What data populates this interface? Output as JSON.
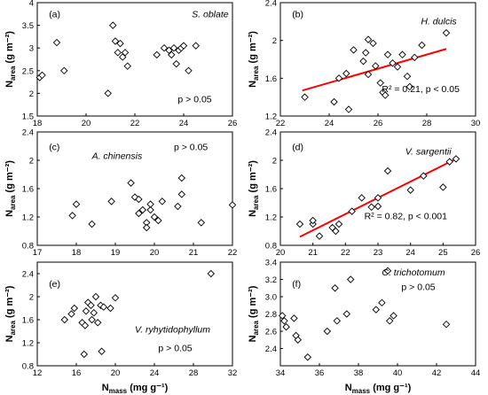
{
  "marker_color": "#000000",
  "fit_color": "#ff0000",
  "chart_data": [
    {
      "type": "scatter",
      "panel": "(a)",
      "species": "S. oblate",
      "annotation": "p > 0.05",
      "ylabel": "N",
      "ylabel_sub": "area",
      "ylabel_unit": "(g m⁻²)",
      "xlabel": "",
      "xlim": [
        18,
        26
      ],
      "ylim": [
        1.5,
        4
      ],
      "xticks": [
        18,
        20,
        22,
        24,
        26
      ],
      "yticks": [
        1.5,
        2,
        2.5,
        3,
        3.5,
        4
      ],
      "ytick_labels": [
        "1.5",
        "2",
        "2.5",
        "3",
        "3.5",
        "4"
      ],
      "points": [
        [
          18.1,
          2.35
        ],
        [
          18.2,
          2.4
        ],
        [
          18.8,
          3.12
        ],
        [
          19.1,
          2.5
        ],
        [
          20.9,
          2.0
        ],
        [
          21.1,
          3.5
        ],
        [
          21.2,
          3.15
        ],
        [
          21.3,
          2.9
        ],
        [
          21.4,
          3.1
        ],
        [
          21.5,
          2.8
        ],
        [
          21.6,
          2.9
        ],
        [
          21.7,
          2.6
        ],
        [
          22.9,
          2.85
        ],
        [
          23.2,
          3.0
        ],
        [
          23.4,
          2.95
        ],
        [
          23.5,
          2.85
        ],
        [
          23.6,
          3.0
        ],
        [
          23.7,
          2.65
        ],
        [
          23.8,
          2.95
        ],
        [
          23.9,
          3.0
        ],
        [
          24.0,
          3.05
        ],
        [
          24.2,
          2.5
        ],
        [
          24.5,
          3.05
        ]
      ],
      "fit": null
    },
    {
      "type": "scatter",
      "panel": "(b)",
      "species": "H. dulcis",
      "annotation": "R² = 0.21,  p < 0.05",
      "ylabel": "N",
      "ylabel_sub": "area",
      "ylabel_unit": "(g m⁻²)",
      "xlabel": "",
      "xlim": [
        22,
        30
      ],
      "ylim": [
        1.2,
        2.4
      ],
      "xticks": [
        22,
        24,
        26,
        28,
        30
      ],
      "yticks": [
        1.2,
        1.6,
        2.0,
        2.4
      ],
      "ytick_labels": [
        "1.2",
        "1.6",
        "2",
        "2.4"
      ],
      "points": [
        [
          23.0,
          1.4
        ],
        [
          24.2,
          1.35
        ],
        [
          24.4,
          1.6
        ],
        [
          24.7,
          1.65
        ],
        [
          24.8,
          1.27
        ],
        [
          25.0,
          1.9
        ],
        [
          25.4,
          1.78
        ],
        [
          25.5,
          1.87
        ],
        [
          25.6,
          2.01
        ],
        [
          25.6,
          1.64
        ],
        [
          25.8,
          1.97
        ],
        [
          25.9,
          1.73
        ],
        [
          26.1,
          1.55
        ],
        [
          26.2,
          1.45
        ],
        [
          26.3,
          1.42
        ],
        [
          26.4,
          1.85
        ],
        [
          26.6,
          1.76
        ],
        [
          26.8,
          1.72
        ],
        [
          27.0,
          1.85
        ],
        [
          27.2,
          1.62
        ],
        [
          27.3,
          1.51
        ],
        [
          27.5,
          1.82
        ],
        [
          27.8,
          1.95
        ],
        [
          28.8,
          2.08
        ]
      ],
      "fit": {
        "x": [
          22.9,
          28.8
        ],
        "y": [
          1.47,
          1.91
        ]
      }
    },
    {
      "type": "scatter",
      "panel": "(c)",
      "species": "A. chinensis",
      "annotation": "p > 0.05",
      "ylabel": "N",
      "ylabel_sub": "area",
      "ylabel_unit": "(g m⁻²)",
      "xlabel": "",
      "xlim": [
        17,
        22
      ],
      "ylim": [
        0.8,
        2.4
      ],
      "xticks": [
        17,
        18,
        19,
        20,
        21,
        22
      ],
      "yticks": [
        0.8,
        1.2,
        1.6,
        2.0,
        2.4
      ],
      "ytick_labels": [
        "0.8",
        "1.2",
        "1.6",
        "2",
        "2.4"
      ],
      "points": [
        [
          17.9,
          1.22
        ],
        [
          18.0,
          1.38
        ],
        [
          18.4,
          1.1
        ],
        [
          18.9,
          1.42
        ],
        [
          19.4,
          1.68
        ],
        [
          19.5,
          1.48
        ],
        [
          19.6,
          1.45
        ],
        [
          19.6,
          1.25
        ],
        [
          19.7,
          1.3
        ],
        [
          19.8,
          1.12
        ],
        [
          19.8,
          1.05
        ],
        [
          19.9,
          1.3
        ],
        [
          19.9,
          1.38
        ],
        [
          20.0,
          1.2
        ],
        [
          20.1,
          1.15
        ],
        [
          20.2,
          1.42
        ],
        [
          20.6,
          1.35
        ],
        [
          20.7,
          1.52
        ],
        [
          20.7,
          1.75
        ],
        [
          21.2,
          1.12
        ],
        [
          22.0,
          1.37
        ]
      ],
      "fit": null
    },
    {
      "type": "scatter",
      "panel": "(d)",
      "species": "V. sargentii",
      "annotation": "R² = 0.82,  p < 0.001",
      "ylabel": "N",
      "ylabel_sub": "area",
      "ylabel_unit": "(g m⁻²)",
      "xlabel": "",
      "xlim": [
        20,
        26
      ],
      "ylim": [
        0.8,
        2.4
      ],
      "xticks": [
        20,
        21,
        22,
        23,
        24,
        25,
        26
      ],
      "yticks": [
        0.8,
        1.2,
        1.6,
        2.0,
        2.4
      ],
      "ytick_labels": [
        "0.8",
        "1.2",
        "1.6",
        "2",
        "2.4"
      ],
      "points": [
        [
          20.6,
          1.1
        ],
        [
          21.0,
          1.1
        ],
        [
          21.0,
          1.15
        ],
        [
          21.2,
          0.93
        ],
        [
          21.6,
          1.05
        ],
        [
          21.7,
          1.0
        ],
        [
          21.8,
          1.1
        ],
        [
          22.2,
          1.28
        ],
        [
          22.5,
          1.47
        ],
        [
          22.8,
          1.34
        ],
        [
          23.0,
          1.35
        ],
        [
          23.0,
          1.47
        ],
        [
          23.3,
          1.85
        ],
        [
          24.0,
          1.58
        ],
        [
          24.4,
          1.78
        ],
        [
          25.0,
          1.62
        ],
        [
          25.2,
          1.98
        ],
        [
          25.4,
          2.02
        ]
      ],
      "fit": {
        "x": [
          20.6,
          25.4
        ],
        "y": [
          0.92,
          2.02
        ]
      }
    },
    {
      "type": "scatter",
      "panel": "(e)",
      "species": "V. ryhytidophyllum",
      "annotation": "p > 0.05",
      "ylabel": "N",
      "ylabel_sub": "area",
      "ylabel_unit": "(g m⁻²)",
      "xlabel": "N",
      "xlabel_sub": "mass",
      "xlabel_unit": "(mg g⁻¹)",
      "xlim": [
        12,
        32
      ],
      "ylim": [
        0.8,
        2.6
      ],
      "xticks": [
        12,
        16,
        20,
        24,
        28,
        32
      ],
      "yticks": [
        0.8,
        1.2,
        1.6,
        2.0,
        2.4
      ],
      "ytick_labels": [
        "0.8",
        "1.2",
        "1.6",
        "2",
        "2.4"
      ],
      "points": [
        [
          14.8,
          1.6
        ],
        [
          15.5,
          1.7
        ],
        [
          15.8,
          1.8
        ],
        [
          16.6,
          1.55
        ],
        [
          16.9,
          1.5
        ],
        [
          17.0,
          1.75
        ],
        [
          17.2,
          1.9
        ],
        [
          17.5,
          1.85
        ],
        [
          17.6,
          1.6
        ],
        [
          17.8,
          1.72
        ],
        [
          18.0,
          2.0
        ],
        [
          18.2,
          1.55
        ],
        [
          18.5,
          1.85
        ],
        [
          18.8,
          1.82
        ],
        [
          19.5,
          1.8
        ],
        [
          16.8,
          1.0
        ],
        [
          18.6,
          1.05
        ],
        [
          20.0,
          1.98
        ],
        [
          29.8,
          2.4
        ]
      ],
      "fit": null
    },
    {
      "type": "scatter",
      "panel": "(f)",
      "species": "C. trichotomum",
      "annotation": "p > 0.05",
      "ylabel": "N",
      "ylabel_sub": "area",
      "ylabel_unit": "(g m⁻²)",
      "xlabel": "N",
      "xlabel_sub": "mass",
      "xlabel_unit": "(mg g⁻¹)",
      "xlim": [
        34,
        44
      ],
      "ylim": [
        2.2,
        3.4
      ],
      "xticks": [
        34,
        36,
        38,
        40,
        42,
        44
      ],
      "yticks": [
        2.4,
        2.6,
        2.8,
        3.0,
        3.2,
        3.4
      ],
      "ytick_labels": [
        "2.4",
        "2.6",
        "2.8",
        "3.0",
        "3.2",
        "3.4"
      ],
      "points": [
        [
          34.1,
          2.78
        ],
        [
          34.2,
          2.72
        ],
        [
          34.3,
          2.65
        ],
        [
          34.7,
          2.75
        ],
        [
          34.8,
          2.55
        ],
        [
          34.9,
          2.5
        ],
        [
          35.4,
          2.3
        ],
        [
          36.4,
          2.6
        ],
        [
          36.8,
          3.1
        ],
        [
          36.9,
          2.72
        ],
        [
          37.4,
          2.8
        ],
        [
          37.6,
          3.2
        ],
        [
          38.9,
          2.85
        ],
        [
          39.2,
          2.93
        ],
        [
          39.5,
          3.3
        ],
        [
          39.6,
          2.72
        ],
        [
          39.8,
          2.78
        ],
        [
          42.5,
          2.68
        ]
      ],
      "fit": null
    }
  ]
}
